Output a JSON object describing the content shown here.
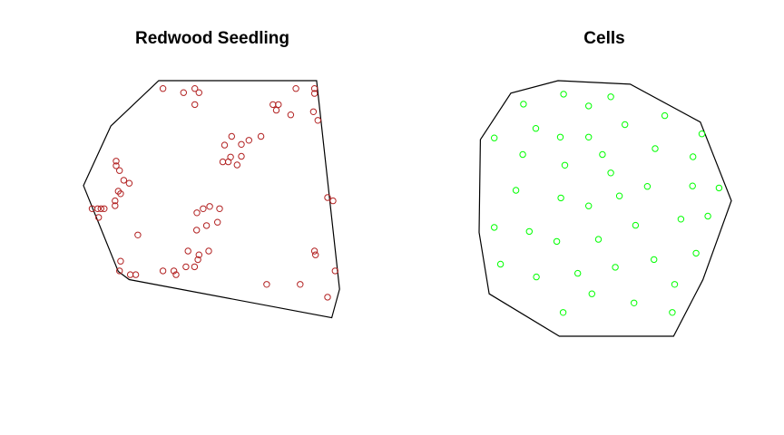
{
  "chart_data": [
    {
      "type": "scatter",
      "title": "Redwood Seedling",
      "xlabel": "",
      "ylabel": "",
      "xlim": [
        0,
        1
      ],
      "ylim": [
        0,
        1
      ],
      "grid": false,
      "axes_visible": false,
      "point_color": "#b22222",
      "hull_color": "#000000",
      "hull": [
        [
          0.288,
          1.0
        ],
        [
          0.892,
          1.0
        ],
        [
          0.98,
          0.181
        ],
        [
          0.95,
          0.069
        ],
        [
          0.175,
          0.219
        ],
        [
          0.133,
          0.251
        ],
        [
          0.0,
          0.588
        ],
        [
          0.105,
          0.822
        ]
      ],
      "points": [
        [
          0.304,
          0.969
        ],
        [
          0.383,
          0.953
        ],
        [
          0.426,
          0.969
        ],
        [
          0.442,
          0.953
        ],
        [
          0.426,
          0.906
        ],
        [
          0.813,
          0.969
        ],
        [
          0.884,
          0.969
        ],
        [
          0.884,
          0.95
        ],
        [
          0.746,
          0.906
        ],
        [
          0.725,
          0.906
        ],
        [
          0.738,
          0.884
        ],
        [
          0.793,
          0.866
        ],
        [
          0.88,
          0.878
        ],
        [
          0.897,
          0.844
        ],
        [
          0.679,
          0.781
        ],
        [
          0.633,
          0.766
        ],
        [
          0.567,
          0.781
        ],
        [
          0.604,
          0.75
        ],
        [
          0.54,
          0.747
        ],
        [
          0.604,
          0.703
        ],
        [
          0.563,
          0.7
        ],
        [
          0.554,
          0.681
        ],
        [
          0.588,
          0.669
        ],
        [
          0.533,
          0.681
        ],
        [
          0.125,
          0.684
        ],
        [
          0.125,
          0.666
        ],
        [
          0.138,
          0.647
        ],
        [
          0.154,
          0.609
        ],
        [
          0.175,
          0.597
        ],
        [
          0.133,
          0.566
        ],
        [
          0.142,
          0.556
        ],
        [
          0.121,
          0.528
        ],
        [
          0.121,
          0.509
        ],
        [
          0.033,
          0.497
        ],
        [
          0.067,
          0.497
        ],
        [
          0.054,
          0.497
        ],
        [
          0.079,
          0.497
        ],
        [
          0.058,
          0.463
        ],
        [
          0.934,
          0.541
        ],
        [
          0.955,
          0.528
        ],
        [
          0.483,
          0.506
        ],
        [
          0.458,
          0.497
        ],
        [
          0.434,
          0.481
        ],
        [
          0.521,
          0.497
        ],
        [
          0.513,
          0.444
        ],
        [
          0.471,
          0.431
        ],
        [
          0.433,
          0.413
        ],
        [
          0.208,
          0.394
        ],
        [
          0.479,
          0.331
        ],
        [
          0.442,
          0.316
        ],
        [
          0.4,
          0.331
        ],
        [
          0.438,
          0.297
        ],
        [
          0.425,
          0.269
        ],
        [
          0.392,
          0.269
        ],
        [
          0.142,
          0.291
        ],
        [
          0.138,
          0.253
        ],
        [
          0.179,
          0.238
        ],
        [
          0.2,
          0.238
        ],
        [
          0.304,
          0.253
        ],
        [
          0.346,
          0.253
        ],
        [
          0.354,
          0.238
        ],
        [
          0.884,
          0.331
        ],
        [
          0.888,
          0.316
        ],
        [
          0.963,
          0.253
        ],
        [
          0.829,
          0.2
        ],
        [
          0.701,
          0.2
        ],
        [
          0.934,
          0.15
        ]
      ]
    },
    {
      "type": "scatter",
      "title": "Cells",
      "xlabel": "",
      "ylabel": "",
      "xlim": [
        0,
        1
      ],
      "ylim": [
        0,
        1
      ],
      "grid": false,
      "axes_visible": false,
      "point_color": "#00ff00",
      "hull_color": "#000000",
      "hull": [
        [
          0.313,
          1.0
        ],
        [
          0.599,
          0.986
        ],
        [
          0.877,
          0.838
        ],
        [
          1.0,
          0.53
        ],
        [
          0.887,
          0.221
        ],
        [
          0.771,
          0.0
        ],
        [
          0.318,
          0.0
        ],
        [
          0.04,
          0.166
        ],
        [
          0.0,
          0.406
        ],
        [
          0.005,
          0.769
        ],
        [
          0.126,
          0.951
        ]
      ],
      "points": [
        [
          0.335,
          0.947
        ],
        [
          0.522,
          0.937
        ],
        [
          0.176,
          0.908
        ],
        [
          0.434,
          0.901
        ],
        [
          0.736,
          0.863
        ],
        [
          0.578,
          0.828
        ],
        [
          0.225,
          0.813
        ],
        [
          0.883,
          0.792
        ],
        [
          0.06,
          0.776
        ],
        [
          0.322,
          0.779
        ],
        [
          0.434,
          0.779
        ],
        [
          0.698,
          0.734
        ],
        [
          0.173,
          0.711
        ],
        [
          0.489,
          0.711
        ],
        [
          0.848,
          0.702
        ],
        [
          0.34,
          0.669
        ],
        [
          0.522,
          0.639
        ],
        [
          0.667,
          0.586
        ],
        [
          0.846,
          0.588
        ],
        [
          0.951,
          0.58
        ],
        [
          0.146,
          0.571
        ],
        [
          0.556,
          0.549
        ],
        [
          0.324,
          0.541
        ],
        [
          0.434,
          0.51
        ],
        [
          0.907,
          0.47
        ],
        [
          0.8,
          0.458
        ],
        [
          0.06,
          0.426
        ],
        [
          0.62,
          0.434
        ],
        [
          0.199,
          0.41
        ],
        [
          0.473,
          0.379
        ],
        [
          0.308,
          0.371
        ],
        [
          0.86,
          0.325
        ],
        [
          0.693,
          0.3
        ],
        [
          0.085,
          0.282
        ],
        [
          0.54,
          0.27
        ],
        [
          0.391,
          0.246
        ],
        [
          0.227,
          0.232
        ],
        [
          0.775,
          0.203
        ],
        [
          0.447,
          0.166
        ],
        [
          0.614,
          0.13
        ],
        [
          0.333,
          0.093
        ],
        [
          0.766,
          0.093
        ]
      ]
    }
  ]
}
